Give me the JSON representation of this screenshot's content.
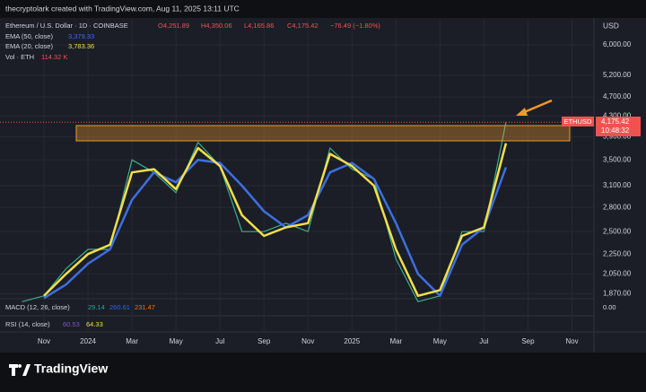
{
  "header": {
    "credit": "thecryptolark created with TradingView.com, Aug 11, 2025 13:11 UTC",
    "currency": "USD"
  },
  "legend": {
    "symbol": "Ethereum / U.S. Dollar · 1D · COINBASE",
    "open": "O4,251.89",
    "high": "H4,350.06",
    "low": "L4,165.86",
    "close": "C4,175.42",
    "change": "−76.49 (−1.80%)",
    "volume_name": "Vol · ETH",
    "volume_value": "114.32 K"
  },
  "price_tag": {
    "symbol": "ETHUSD",
    "price": "4,175.42",
    "countdown": "10:48:32"
  },
  "indicators": {
    "macd_name": "MACD (12, 26, close)",
    "macd_values": [
      "29.14",
      "260.61",
      "231.47"
    ],
    "macd_zero": "0.00",
    "rsi_name": "RSI (14, close)",
    "rsi_values": [
      "60.53",
      "64.33"
    ]
  },
  "footer": {
    "logo": "TradingView"
  },
  "chart_data": {
    "type": "line",
    "log_scale": true,
    "grid": true,
    "x": [
      "2023-10",
      "2023-11",
      "2023-12",
      "2024-01",
      "2024-02",
      "2024-03",
      "2024-04",
      "2024-05",
      "2024-06",
      "2024-07",
      "2024-08",
      "2024-09",
      "2024-10",
      "2024-11",
      "2024-12",
      "2025-01",
      "2025-02",
      "2025-03",
      "2025-04",
      "2025-05",
      "2025-06",
      "2025-07",
      "2025-08"
    ],
    "series": [
      {
        "name": "Ethereum / U.S. Dollar · 1D · COINBASE",
        "color": "#3fae8a",
        "values": [
          1800,
          1850,
          2100,
          2300,
          2300,
          3500,
          3300,
          3000,
          3800,
          3400,
          2500,
          2500,
          2600,
          2500,
          3700,
          3350,
          3200,
          2200,
          1800,
          1850,
          2500,
          2500,
          4175.42
        ]
      },
      {
        "name": "EMA (50, close)",
        "color": "#3d6fe0",
        "value_labels": [
          null,
          null,
          null,
          null,
          null,
          null,
          null,
          null,
          null,
          null,
          null,
          null,
          null,
          null,
          null,
          null,
          null,
          null,
          null,
          null,
          null,
          null,
          "3,379.33"
        ],
        "values": [
          null,
          1830,
          1950,
          2150,
          2300,
          2900,
          3300,
          3150,
          3500,
          3450,
          3100,
          2750,
          2550,
          2700,
          3300,
          3450,
          3200,
          2600,
          2050,
          1850,
          2350,
          2550,
          3379.33
        ]
      },
      {
        "name": "EMA (20, close)",
        "color": "#f2df4a",
        "value_labels": [
          null,
          null,
          null,
          null,
          null,
          null,
          null,
          null,
          null,
          null,
          null,
          null,
          null,
          null,
          null,
          null,
          null,
          null,
          null,
          null,
          null,
          null,
          "3,783.36"
        ],
        "values": [
          null,
          1850,
          2050,
          2250,
          2350,
          3300,
          3350,
          3050,
          3700,
          3400,
          2700,
          2450,
          2550,
          2600,
          3600,
          3400,
          3100,
          2300,
          1850,
          1900,
          2450,
          2550,
          3783.36
        ]
      }
    ],
    "xlim": [
      "2023-09",
      "2025-12"
    ],
    "xticks": [
      {
        "value": "2023-11",
        "label": "Nov"
      },
      {
        "value": "2024-01",
        "label": "2024"
      },
      {
        "value": "2024-03",
        "label": "Mar"
      },
      {
        "value": "2024-05",
        "label": "May"
      },
      {
        "value": "2024-07",
        "label": "Jul"
      },
      {
        "value": "2024-09",
        "label": "Sep"
      },
      {
        "value": "2024-11",
        "label": "Nov"
      },
      {
        "value": "2025-01",
        "label": "2025"
      },
      {
        "value": "2025-03",
        "label": "Mar"
      },
      {
        "value": "2025-05",
        "label": "May"
      },
      {
        "value": "2025-07",
        "label": "Jul"
      },
      {
        "value": "2025-09",
        "label": "Sep"
      },
      {
        "value": "2025-11",
        "label": "Nov"
      }
    ],
    "ylim": [
      1825,
      6750
    ],
    "yticks": [
      {
        "value": 6000,
        "label": "6,000.00"
      },
      {
        "value": 5200,
        "label": "5,200.00"
      },
      {
        "value": 4700,
        "label": "4,700.00"
      },
      {
        "value": 4300,
        "label": "4,300.00"
      },
      {
        "value": 3900,
        "label": "3,900.00"
      },
      {
        "value": 3500,
        "label": "3,500.00"
      },
      {
        "value": 3100,
        "label": "3,100.00"
      },
      {
        "value": 2800,
        "label": "2,800.00"
      },
      {
        "value": 2500,
        "label": "2,500.00"
      },
      {
        "value": 2250,
        "label": "2,250.00"
      },
      {
        "value": 2050,
        "label": "2,050.00"
      },
      {
        "value": 1870,
        "label": "1,870.00"
      }
    ]
  }
}
